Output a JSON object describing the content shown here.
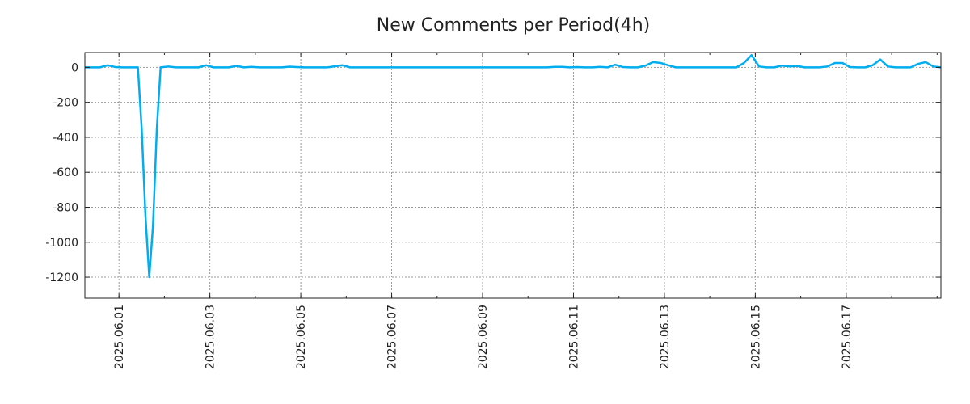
{
  "chart_data": {
    "type": "line",
    "title": "New Comments per Period(4h)",
    "xlabel": "",
    "ylabel": "",
    "x_range": [
      "2025-05-31T06:00",
      "2025-06-19T02:00"
    ],
    "ylim": [
      -1320,
      85
    ],
    "y_ticks": [
      0,
      -200,
      -400,
      -600,
      -800,
      -1000,
      -1200
    ],
    "x_ticks": [
      "2025.06.01",
      "2025.06.03",
      "2025.06.05",
      "2025.06.07",
      "2025.06.09",
      "2025.06.11",
      "2025.06.13",
      "2025.06.15",
      "2025.06.17"
    ],
    "grid": true,
    "legend": "none",
    "series": [
      {
        "color": "#00aeef",
        "points": [
          [
            "2025-05-31T06:00",
            0
          ],
          [
            "2025-05-31T10:00",
            0
          ],
          [
            "2025-05-31T14:00",
            0
          ],
          [
            "2025-05-31T18:00",
            12
          ],
          [
            "2025-05-31T22:00",
            2
          ],
          [
            "2025-06-01T02:00",
            0
          ],
          [
            "2025-06-01T06:00",
            0
          ],
          [
            "2025-06-01T10:00",
            0
          ],
          [
            "2025-06-01T12:00",
            -350
          ],
          [
            "2025-06-01T14:00",
            -850
          ],
          [
            "2025-06-01T16:00",
            -1200
          ],
          [
            "2025-06-01T18:00",
            -900
          ],
          [
            "2025-06-01T20:00",
            -350
          ],
          [
            "2025-06-01T22:00",
            0
          ],
          [
            "2025-06-02T02:00",
            5
          ],
          [
            "2025-06-02T06:00",
            0
          ],
          [
            "2025-06-02T10:00",
            0
          ],
          [
            "2025-06-02T14:00",
            0
          ],
          [
            "2025-06-02T18:00",
            0
          ],
          [
            "2025-06-02T22:00",
            12
          ],
          [
            "2025-06-03T02:00",
            0
          ],
          [
            "2025-06-03T06:00",
            0
          ],
          [
            "2025-06-03T10:00",
            0
          ],
          [
            "2025-06-03T14:00",
            8
          ],
          [
            "2025-06-03T18:00",
            0
          ],
          [
            "2025-06-03T22:00",
            3
          ],
          [
            "2025-06-04T02:00",
            0
          ],
          [
            "2025-06-04T06:00",
            0
          ],
          [
            "2025-06-04T10:00",
            0
          ],
          [
            "2025-06-04T14:00",
            0
          ],
          [
            "2025-06-04T18:00",
            4
          ],
          [
            "2025-06-04T22:00",
            2
          ],
          [
            "2025-06-05T02:00",
            0
          ],
          [
            "2025-06-05T06:00",
            0
          ],
          [
            "2025-06-05T10:00",
            0
          ],
          [
            "2025-06-05T14:00",
            0
          ],
          [
            "2025-06-05T18:00",
            6
          ],
          [
            "2025-06-05T22:00",
            12
          ],
          [
            "2025-06-06T02:00",
            0
          ],
          [
            "2025-06-06T06:00",
            0
          ],
          [
            "2025-06-07T06:00",
            0
          ],
          [
            "2025-06-08T06:00",
            0
          ],
          [
            "2025-06-09T06:00",
            0
          ],
          [
            "2025-06-10T06:00",
            0
          ],
          [
            "2025-06-10T10:00",
            0
          ],
          [
            "2025-06-10T14:00",
            3
          ],
          [
            "2025-06-10T18:00",
            3
          ],
          [
            "2025-06-10T22:00",
            0
          ],
          [
            "2025-06-11T02:00",
            2
          ],
          [
            "2025-06-11T06:00",
            0
          ],
          [
            "2025-06-11T10:00",
            0
          ],
          [
            "2025-06-11T14:00",
            3
          ],
          [
            "2025-06-11T18:00",
            0
          ],
          [
            "2025-06-11T22:00",
            15
          ],
          [
            "2025-06-12T02:00",
            2
          ],
          [
            "2025-06-12T06:00",
            0
          ],
          [
            "2025-06-12T10:00",
            0
          ],
          [
            "2025-06-12T14:00",
            10
          ],
          [
            "2025-06-12T18:00",
            30
          ],
          [
            "2025-06-12T22:00",
            25
          ],
          [
            "2025-06-13T02:00",
            12
          ],
          [
            "2025-06-13T06:00",
            0
          ],
          [
            "2025-06-13T10:00",
            0
          ],
          [
            "2025-06-14T06:00",
            0
          ],
          [
            "2025-06-14T10:00",
            0
          ],
          [
            "2025-06-14T14:00",
            0
          ],
          [
            "2025-06-14T18:00",
            25
          ],
          [
            "2025-06-14T22:00",
            70
          ],
          [
            "2025-06-15T02:00",
            5
          ],
          [
            "2025-06-15T06:00",
            0
          ],
          [
            "2025-06-15T10:00",
            0
          ],
          [
            "2025-06-15T14:00",
            10
          ],
          [
            "2025-06-15T18:00",
            5
          ],
          [
            "2025-06-15T22:00",
            8
          ],
          [
            "2025-06-16T02:00",
            0
          ],
          [
            "2025-06-16T06:00",
            0
          ],
          [
            "2025-06-16T10:00",
            0
          ],
          [
            "2025-06-16T14:00",
            5
          ],
          [
            "2025-06-16T18:00",
            25
          ],
          [
            "2025-06-16T22:00",
            25
          ],
          [
            "2025-06-17T02:00",
            2
          ],
          [
            "2025-06-17T06:00",
            0
          ],
          [
            "2025-06-17T10:00",
            0
          ],
          [
            "2025-06-17T14:00",
            12
          ],
          [
            "2025-06-17T18:00",
            45
          ],
          [
            "2025-06-17T22:00",
            5
          ],
          [
            "2025-06-18T02:00",
            0
          ],
          [
            "2025-06-18T06:00",
            0
          ],
          [
            "2025-06-18T10:00",
            0
          ],
          [
            "2025-06-18T14:00",
            20
          ],
          [
            "2025-06-18T18:00",
            30
          ],
          [
            "2025-06-18T22:00",
            5
          ],
          [
            "2025-06-19T02:00",
            0
          ]
        ]
      }
    ]
  }
}
